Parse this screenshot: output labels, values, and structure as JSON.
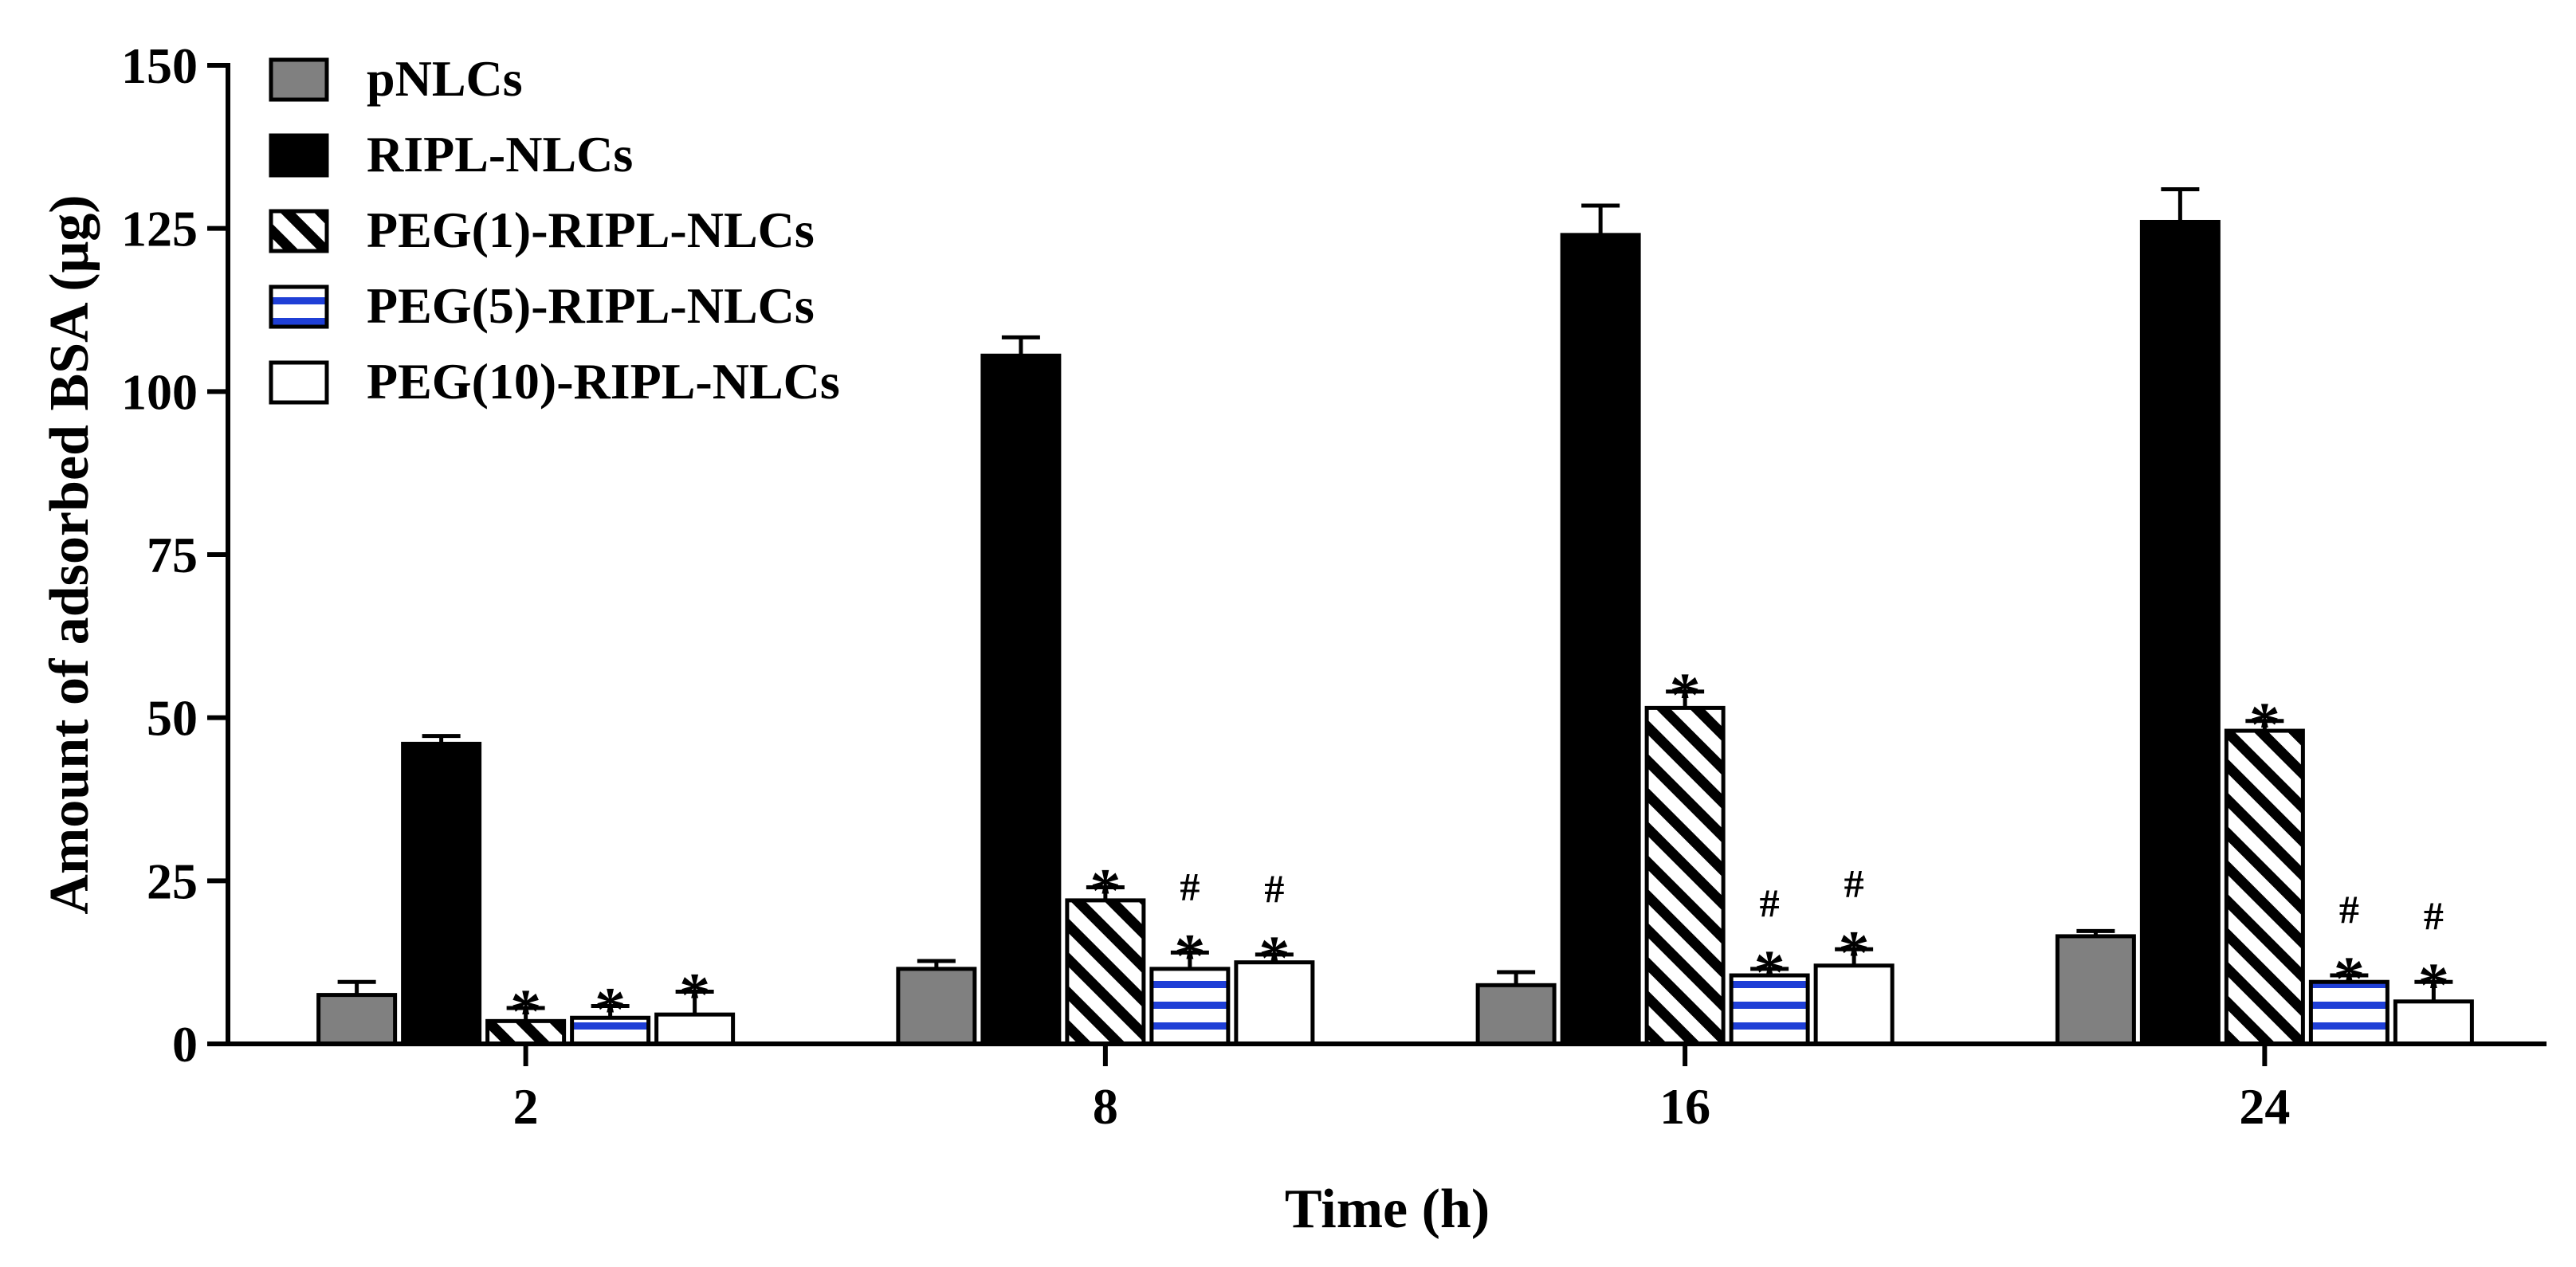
{
  "chart_data": {
    "type": "bar",
    "xlabel": "Time (h)",
    "ylabel": "Amount of adsorbed BSA (μg)",
    "ylim": [
      0,
      150
    ],
    "yticks": [
      0,
      25,
      50,
      75,
      100,
      125,
      150
    ],
    "categories": [
      "2",
      "8",
      "16",
      "24"
    ],
    "grid": false,
    "legend_position": "top-left",
    "series": [
      {
        "name": "pNLCs",
        "pattern": "solid-gray",
        "color": "#808080",
        "values": [
          7.5,
          11.5,
          9,
          16.5
        ],
        "errors": [
          2,
          1.2,
          2,
          0.8
        ],
        "annotations": [
          "",
          "",
          "",
          ""
        ]
      },
      {
        "name": "RIPL-NLCs",
        "pattern": "solid-black",
        "color": "#000000",
        "values": [
          46,
          105.5,
          124,
          126
        ],
        "errors": [
          1.2,
          2.8,
          4.5,
          5
        ],
        "annotations": [
          "",
          "",
          "",
          ""
        ]
      },
      {
        "name": "PEG(1)-RIPL-NLCs",
        "pattern": "diagonal-hatch",
        "color": "#000000",
        "values": [
          3.5,
          22,
          51.5,
          48
        ],
        "errors": [
          2,
          2,
          2.5,
          1.5
        ],
        "annotations": [
          "*",
          "*",
          "*",
          "*"
        ]
      },
      {
        "name": "PEG(5)-RIPL-NLCs",
        "pattern": "blue-horizontal-stripes",
        "color": "#1f3fd6",
        "values": [
          4,
          11.5,
          10.5,
          9.5
        ],
        "errors": [
          1.8,
          2.5,
          1,
          1
        ],
        "annotations": [
          "*",
          "#*",
          "#*",
          "#*"
        ]
      },
      {
        "name": "PEG(10)-RIPL-NLCs",
        "pattern": "solid-white",
        "color": "#ffffff",
        "values": [
          4.5,
          12.5,
          12,
          6.5
        ],
        "errors": [
          3.5,
          1.2,
          2.5,
          3
        ],
        "annotations": [
          "*",
          "#*",
          "#*",
          "#*"
        ]
      }
    ]
  }
}
